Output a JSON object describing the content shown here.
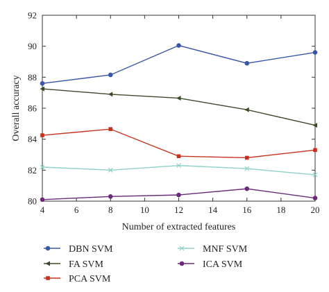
{
  "chart_data": {
    "type": "line",
    "xlabel": "Number of extracted features",
    "ylabel": "Overall accuracy",
    "xlim": [
      4,
      20
    ],
    "ylim": [
      80,
      92
    ],
    "xticks": [
      4,
      6,
      8,
      10,
      12,
      14,
      16,
      18,
      20
    ],
    "yticks": [
      80,
      82,
      84,
      86,
      88,
      90,
      92
    ],
    "x": [
      4,
      8,
      12,
      16,
      20
    ],
    "grid": false,
    "legend_position": "bottom",
    "series": [
      {
        "name": "DBN SVM",
        "values": [
          87.6,
          88.15,
          90.05,
          88.9,
          89.6
        ],
        "color": "#3a56a8",
        "marker": "circle"
      },
      {
        "name": "FA SVM",
        "values": [
          87.25,
          86.9,
          86.65,
          85.9,
          84.9
        ],
        "color": "#3c4a2a",
        "marker": "triangle-left"
      },
      {
        "name": "PCA SVM",
        "values": [
          84.25,
          84.65,
          82.9,
          82.8,
          83.3
        ],
        "color": "#c8301e",
        "marker": "square"
      },
      {
        "name": "MNF SVM",
        "values": [
          82.2,
          82.0,
          82.3,
          82.1,
          81.7
        ],
        "color": "#8fd0c8",
        "marker": "x"
      },
      {
        "name": "ICA SVM",
        "values": [
          80.1,
          80.3,
          80.4,
          80.8,
          80.2
        ],
        "color": "#6a2a7a",
        "marker": "circle"
      }
    ]
  }
}
